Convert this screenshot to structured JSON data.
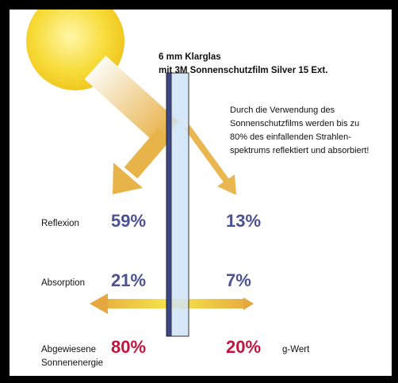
{
  "header": {
    "title": [
      "6 mm Klarglas",
      "mit 3M Sonnenschutzfilm Silver 15 Ext."
    ]
  },
  "note": [
    "Durch die Verwendung des",
    "Sonnenschutzfilms werden bis zu",
    "80% des einfallenden Strahlen-",
    "spektrums reflektiert und absorbiert!"
  ],
  "rows": [
    {
      "label": [
        "Reflexion"
      ],
      "outside": "59%",
      "inside": "13%"
    },
    {
      "label": [
        "Absorption"
      ],
      "outside": "21%",
      "inside": "7%"
    },
    {
      "label": [
        "Abgewiesene",
        "Sonnenenergie"
      ],
      "outside": "80%",
      "inside": "20%",
      "suffix": "g-Wert"
    }
  ]
}
